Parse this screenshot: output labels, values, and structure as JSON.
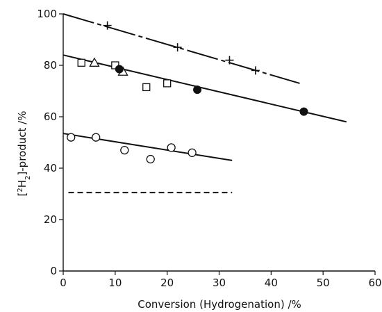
{
  "chart_data": {
    "type": "scatter",
    "xlabel": "Conversion  (Hydrogenation) /%",
    "ylabel_parts": {
      "open": "[",
      "sup": "2",
      "main": "H",
      "sub": "2",
      "rest": "]-product /%"
    },
    "xlim": [
      0,
      60
    ],
    "ylim": [
      0,
      100
    ],
    "xticks": [
      0,
      10,
      20,
      30,
      40,
      50,
      60
    ],
    "yticks": [
      0,
      20,
      40,
      60,
      80,
      100
    ],
    "grid": false,
    "series": [
      {
        "marker": "plus",
        "points": [
          [
            8.5,
            95.5
          ],
          [
            22,
            87
          ],
          [
            32,
            82
          ],
          [
            37,
            78
          ]
        ],
        "fit": {
          "x": [
            0,
            45.5
          ],
          "y": [
            100,
            73
          ],
          "style": "long-dash"
        }
      },
      {
        "marker": "square",
        "points": [
          [
            3.5,
            81
          ],
          [
            10,
            80
          ],
          [
            16,
            71.5
          ],
          [
            20,
            73
          ]
        ]
      },
      {
        "marker": "triangle",
        "points": [
          [
            6,
            81
          ],
          [
            11.5,
            77.5
          ]
        ]
      },
      {
        "marker": "filled-circle",
        "points": [
          [
            10.8,
            78.5
          ],
          [
            25.8,
            70.5
          ],
          [
            46.3,
            62
          ]
        ],
        "fit": {
          "x": [
            0,
            54.5
          ],
          "y": [
            84,
            58
          ],
          "style": "solid"
        }
      },
      {
        "marker": "open-circle",
        "points": [
          [
            1.5,
            52
          ],
          [
            6.3,
            52
          ],
          [
            11.8,
            47
          ],
          [
            16.8,
            43.5
          ],
          [
            20.8,
            48
          ],
          [
            24.8,
            46
          ]
        ],
        "fit": {
          "x": [
            0,
            32.5
          ],
          "y": [
            53.5,
            43
          ],
          "style": "solid"
        }
      },
      {
        "marker": "none",
        "points": [],
        "fit": {
          "x": [
            1,
            32.5
          ],
          "y": [
            30.5,
            30.5
          ],
          "style": "dashed"
        }
      }
    ]
  }
}
